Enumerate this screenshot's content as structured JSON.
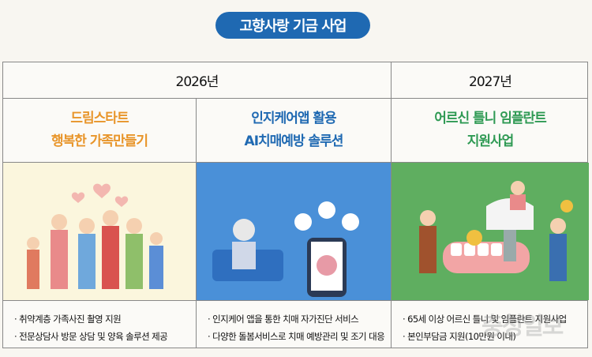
{
  "title": "고향사랑 기금 사업",
  "years": [
    "2026년",
    "2027년"
  ],
  "projects": [
    {
      "title": [
        "드림스타트",
        "행복한 가족만들기"
      ],
      "color": "#e8952a",
      "bullets": [
        "취약계층 가족사진 촬영 지원",
        "전문상담사 방문 상담 및 양육 솔루션 제공"
      ],
      "bg": "#fbf6dd"
    },
    {
      "title": [
        "인지케어앱 활용",
        "AI치매예방 솔루션"
      ],
      "color": "#1f69b2",
      "bullets": [
        "인지케어 앱을 통한 치매 자가진단 서비스",
        "다양한 돌봄서비스로 치매 예방관리 및 조기 대응"
      ],
      "bg": "#4a90d8"
    },
    {
      "title": [
        "어르신 틀니 임플란트",
        "지원사업"
      ],
      "color": "#2f9a54",
      "bullets": [
        "65세 이상 어르신 틀니 및 임플란트 지원사업",
        "본인부담금 지원(10만원 이내)"
      ],
      "bg": "#5fae60"
    }
  ],
  "watermark": "충청일보"
}
